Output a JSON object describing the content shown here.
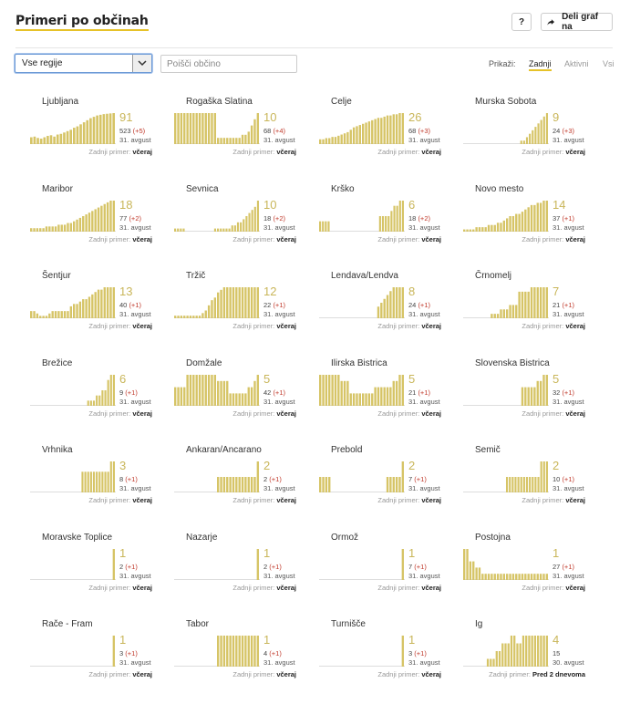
{
  "header": {
    "title": "Primeri po občinah",
    "help_label": "?",
    "share_label": "Deli graf na"
  },
  "filters": {
    "region_selected": "Vse regije",
    "search_placeholder": "Poišči občino",
    "show_label": "Prikaži:",
    "options": [
      "Zadnji",
      "Aktivni",
      "Vsi"
    ],
    "active_option": "Zadnji"
  },
  "colors": {
    "bar": "#d6c466",
    "bar_edge": "#c9b65a",
    "delta": "#c0392b",
    "accent": "#e6c229"
  },
  "chart_data": {
    "type": "bar",
    "last_label_prefix": "Zadnji primer:",
    "municipalities": [
      {
        "name": "Ljubljana",
        "active": "91",
        "total": "523",
        "delta": "(+5)",
        "date": "31. avgust",
        "last": "včeraj",
        "values": [
          20,
          22,
          18,
          16,
          20,
          24,
          26,
          22,
          28,
          30,
          34,
          38,
          42,
          48,
          52,
          58,
          64,
          70,
          76,
          80,
          84,
          86,
          88,
          89,
          90,
          91
        ]
      },
      {
        "name": "Rogaška Slatina",
        "active": "10",
        "total": "68",
        "delta": "(+4)",
        "date": "31. avgust",
        "last": "včeraj",
        "values": [
          10,
          10,
          10,
          10,
          10,
          10,
          10,
          10,
          10,
          10,
          10,
          10,
          10,
          10,
          2,
          2,
          2,
          2,
          2,
          2,
          2,
          2,
          3,
          3,
          4,
          6,
          8,
          10
        ]
      },
      {
        "name": "Celje",
        "active": "26",
        "total": "68",
        "delta": "(+3)",
        "date": "31. avgust",
        "last": "včeraj",
        "values": [
          4,
          4,
          5,
          5,
          6,
          6,
          7,
          8,
          9,
          10,
          12,
          14,
          15,
          16,
          17,
          18,
          19,
          20,
          21,
          22,
          22,
          23,
          24,
          24,
          25,
          25,
          26,
          26
        ]
      },
      {
        "name": "Murska Sobota",
        "active": "9",
        "total": "24",
        "delta": "(+3)",
        "date": "31. avgust",
        "last": "včeraj",
        "values": [
          0,
          0,
          0,
          0,
          0,
          0,
          0,
          0,
          0,
          0,
          0,
          0,
          0,
          0,
          0,
          0,
          0,
          0,
          0,
          0,
          1,
          1,
          2,
          3,
          4,
          5,
          6,
          7,
          8,
          9
        ]
      },
      {
        "name": "Maribor",
        "active": "18",
        "total": "77",
        "delta": "(+2)",
        "date": "31. avgust",
        "last": "včeraj",
        "values": [
          2,
          2,
          2,
          2,
          2,
          3,
          3,
          3,
          3,
          4,
          4,
          4,
          5,
          5,
          6,
          7,
          8,
          9,
          10,
          11,
          12,
          13,
          14,
          15,
          16,
          17,
          18,
          18
        ]
      },
      {
        "name": "Sevnica",
        "active": "10",
        "total": "18",
        "delta": "(+2)",
        "date": "31. avgust",
        "last": "včeraj",
        "values": [
          1,
          1,
          1,
          1,
          0,
          0,
          0,
          0,
          0,
          0,
          0,
          0,
          0,
          0,
          1,
          1,
          1,
          1,
          1,
          1,
          2,
          2,
          3,
          3,
          4,
          5,
          6,
          7,
          8,
          10
        ]
      },
      {
        "name": "Krško",
        "active": "6",
        "total": "18",
        "delta": "(+2)",
        "date": "31. avgust",
        "last": "včeraj",
        "values": [
          2,
          2,
          2,
          2,
          0,
          0,
          0,
          0,
          0,
          0,
          0,
          0,
          0,
          0,
          0,
          0,
          0,
          0,
          0,
          0,
          0,
          3,
          3,
          3,
          3,
          4,
          5,
          5,
          6,
          6
        ]
      },
      {
        "name": "Novo mesto",
        "active": "14",
        "total": "37",
        "delta": "(+1)",
        "date": "31. avgust",
        "last": "včeraj",
        "values": [
          1,
          1,
          1,
          1,
          2,
          2,
          2,
          2,
          3,
          3,
          3,
          4,
          4,
          5,
          6,
          7,
          7,
          8,
          8,
          9,
          10,
          11,
          12,
          12,
          13,
          13,
          14,
          14
        ]
      },
      {
        "name": "Šentjur",
        "active": "13",
        "total": "40",
        "delta": "(+1)",
        "date": "31. avgust",
        "last": "včeraj",
        "values": [
          3,
          3,
          2,
          1,
          1,
          1,
          2,
          3,
          3,
          3,
          3,
          3,
          3,
          5,
          6,
          6,
          7,
          8,
          8,
          9,
          10,
          11,
          12,
          12,
          13,
          13,
          13,
          13
        ]
      },
      {
        "name": "Tržič",
        "active": "12",
        "total": "22",
        "delta": "(+1)",
        "date": "31. avgust",
        "last": "včeraj",
        "values": [
          1,
          1,
          1,
          1,
          1,
          1,
          1,
          1,
          1,
          2,
          3,
          5,
          7,
          8,
          10,
          11,
          12,
          12,
          12,
          12,
          12,
          12,
          12,
          12,
          12,
          12,
          12,
          12
        ]
      },
      {
        "name": "Lendava/Lendva",
        "active": "8",
        "total": "24",
        "delta": "(+1)",
        "date": "31. avgust",
        "last": "včeraj",
        "values": [
          0,
          0,
          0,
          0,
          0,
          0,
          0,
          0,
          0,
          0,
          0,
          0,
          0,
          0,
          0,
          0,
          0,
          0,
          0,
          3,
          4,
          5,
          6,
          7,
          8,
          8,
          8,
          8
        ]
      },
      {
        "name": "Črnomelj",
        "active": "7",
        "total": "21",
        "delta": "(+1)",
        "date": "31. avgust",
        "last": "včeraj",
        "values": [
          0,
          0,
          0,
          0,
          0,
          0,
          0,
          0,
          0,
          1,
          1,
          1,
          2,
          2,
          2,
          3,
          3,
          3,
          6,
          6,
          6,
          6,
          7,
          7,
          7,
          7,
          7,
          7
        ]
      },
      {
        "name": "Brežice",
        "active": "6",
        "total": "9",
        "delta": "(+1)",
        "date": "31. avgust",
        "last": "včeraj",
        "values": [
          0,
          0,
          0,
          0,
          0,
          0,
          0,
          0,
          0,
          0,
          0,
          0,
          0,
          0,
          0,
          0,
          0,
          0,
          0,
          0,
          1,
          1,
          1,
          2,
          2,
          3,
          3,
          5,
          6,
          6
        ]
      },
      {
        "name": "Domžale",
        "active": "5",
        "total": "42",
        "delta": "(+1)",
        "date": "31. avgust",
        "last": "včeraj",
        "values": [
          3,
          3,
          3,
          3,
          5,
          5,
          5,
          5,
          5,
          5,
          5,
          5,
          5,
          5,
          4,
          4,
          4,
          4,
          2,
          2,
          2,
          2,
          2,
          2,
          3,
          3,
          4,
          5
        ]
      },
      {
        "name": "Ilirska Bistrica",
        "active": "5",
        "total": "21",
        "delta": "(+1)",
        "date": "31. avgust",
        "last": "včeraj",
        "values": [
          5,
          5,
          5,
          5,
          5,
          5,
          5,
          4,
          4,
          4,
          2,
          2,
          2,
          2,
          2,
          2,
          2,
          2,
          3,
          3,
          3,
          3,
          3,
          3,
          4,
          4,
          5,
          5
        ]
      },
      {
        "name": "Slovenska Bistrica",
        "active": "5",
        "total": "32",
        "delta": "(+1)",
        "date": "31. avgust",
        "last": "včeraj",
        "values": [
          0,
          0,
          0,
          0,
          0,
          0,
          0,
          0,
          0,
          0,
          0,
          0,
          0,
          0,
          0,
          0,
          0,
          0,
          0,
          3,
          3,
          3,
          3,
          3,
          4,
          4,
          5,
          5
        ]
      },
      {
        "name": "Vrhnika",
        "active": "3",
        "total": "8",
        "delta": "(+1)",
        "date": "31. avgust",
        "last": "včeraj",
        "values": [
          0,
          0,
          0,
          0,
          0,
          0,
          0,
          0,
          0,
          0,
          0,
          0,
          0,
          0,
          0,
          0,
          0,
          0,
          2,
          2,
          2,
          2,
          2,
          2,
          2,
          2,
          2,
          2,
          3,
          3
        ]
      },
      {
        "name": "Ankaran/Ancarano",
        "active": "2",
        "total": "2",
        "delta": "(+1)",
        "date": "31. avgust",
        "last": "včeraj",
        "values": [
          0,
          0,
          0,
          0,
          0,
          0,
          0,
          0,
          0,
          0,
          0,
          0,
          0,
          0,
          1,
          1,
          1,
          1,
          1,
          1,
          1,
          1,
          1,
          1,
          1,
          1,
          1,
          2
        ]
      },
      {
        "name": "Prebold",
        "active": "2",
        "total": "7",
        "delta": "(+1)",
        "date": "31. avgust",
        "last": "včeraj",
        "values": [
          1,
          1,
          1,
          1,
          0,
          0,
          0,
          0,
          0,
          0,
          0,
          0,
          0,
          0,
          0,
          0,
          0,
          0,
          0,
          0,
          0,
          0,
          1,
          1,
          1,
          1,
          1,
          2
        ]
      },
      {
        "name": "Semič",
        "active": "2",
        "total": "10",
        "delta": "(+1)",
        "date": "31. avgust",
        "last": "včeraj",
        "values": [
          0,
          0,
          0,
          0,
          0,
          0,
          0,
          0,
          0,
          0,
          0,
          0,
          0,
          0,
          0,
          1,
          1,
          1,
          1,
          1,
          1,
          1,
          1,
          1,
          1,
          1,
          1,
          2,
          2,
          2
        ]
      },
      {
        "name": "Moravske Toplice",
        "active": "1",
        "total": "2",
        "delta": "(+1)",
        "date": "31. avgust",
        "last": "včeraj",
        "values": [
          0,
          0,
          0,
          0,
          0,
          0,
          0,
          0,
          0,
          0,
          0,
          0,
          0,
          0,
          0,
          0,
          0,
          0,
          0,
          0,
          0,
          0,
          0,
          0,
          0,
          0,
          0,
          1
        ]
      },
      {
        "name": "Nazarje",
        "active": "1",
        "total": "2",
        "delta": "(+1)",
        "date": "31. avgust",
        "last": "včeraj",
        "values": [
          0,
          0,
          0,
          0,
          0,
          0,
          0,
          0,
          0,
          0,
          0,
          0,
          0,
          0,
          0,
          0,
          0,
          0,
          0,
          0,
          0,
          0,
          0,
          0,
          0,
          0,
          0,
          1
        ]
      },
      {
        "name": "Ormož",
        "active": "1",
        "total": "7",
        "delta": "(+1)",
        "date": "31. avgust",
        "last": "včeraj",
        "values": [
          0,
          0,
          0,
          0,
          0,
          0,
          0,
          0,
          0,
          0,
          0,
          0,
          0,
          0,
          0,
          0,
          0,
          0,
          0,
          0,
          0,
          0,
          0,
          0,
          0,
          0,
          0,
          1
        ]
      },
      {
        "name": "Postojna",
        "active": "1",
        "total": "27",
        "delta": "(+1)",
        "date": "31. avgust",
        "last": "včeraj",
        "values": [
          5,
          5,
          3,
          3,
          2,
          2,
          1,
          1,
          1,
          1,
          1,
          1,
          1,
          1,
          1,
          1,
          1,
          1,
          1,
          1,
          1,
          1,
          1,
          1,
          1,
          1,
          1,
          1
        ]
      },
      {
        "name": "Rače - Fram",
        "active": "1",
        "total": "3",
        "delta": "(+1)",
        "date": "31. avgust",
        "last": "včeraj",
        "values": [
          0,
          0,
          0,
          0,
          0,
          0,
          0,
          0,
          0,
          0,
          0,
          0,
          0,
          0,
          0,
          0,
          0,
          0,
          0,
          0,
          0,
          0,
          0,
          0,
          0,
          0,
          0,
          1
        ]
      },
      {
        "name": "Tabor",
        "active": "1",
        "total": "4",
        "delta": "(+1)",
        "date": "31. avgust",
        "last": "včeraj",
        "values": [
          0,
          0,
          0,
          0,
          0,
          0,
          0,
          0,
          0,
          0,
          0,
          0,
          0,
          0,
          1,
          1,
          1,
          1,
          1,
          1,
          1,
          1,
          1,
          1,
          1,
          1,
          1,
          1
        ]
      },
      {
        "name": "Turnišče",
        "active": "1",
        "total": "3",
        "delta": "(+1)",
        "date": "31. avgust",
        "last": "včeraj",
        "values": [
          0,
          0,
          0,
          0,
          0,
          0,
          0,
          0,
          0,
          0,
          0,
          0,
          0,
          0,
          0,
          0,
          0,
          0,
          0,
          0,
          0,
          0,
          0,
          0,
          0,
          0,
          0,
          1
        ]
      },
      {
        "name": "Ig",
        "active": "4",
        "total": "15",
        "delta": "",
        "date": "30. avgust",
        "last": "Pred 2 dnevoma",
        "values": [
          0,
          0,
          0,
          0,
          0,
          0,
          0,
          0,
          1,
          1,
          1,
          2,
          2,
          3,
          3,
          3,
          4,
          4,
          3,
          3,
          4,
          4,
          4,
          4,
          4,
          4,
          4,
          4,
          4
        ]
      }
    ]
  }
}
